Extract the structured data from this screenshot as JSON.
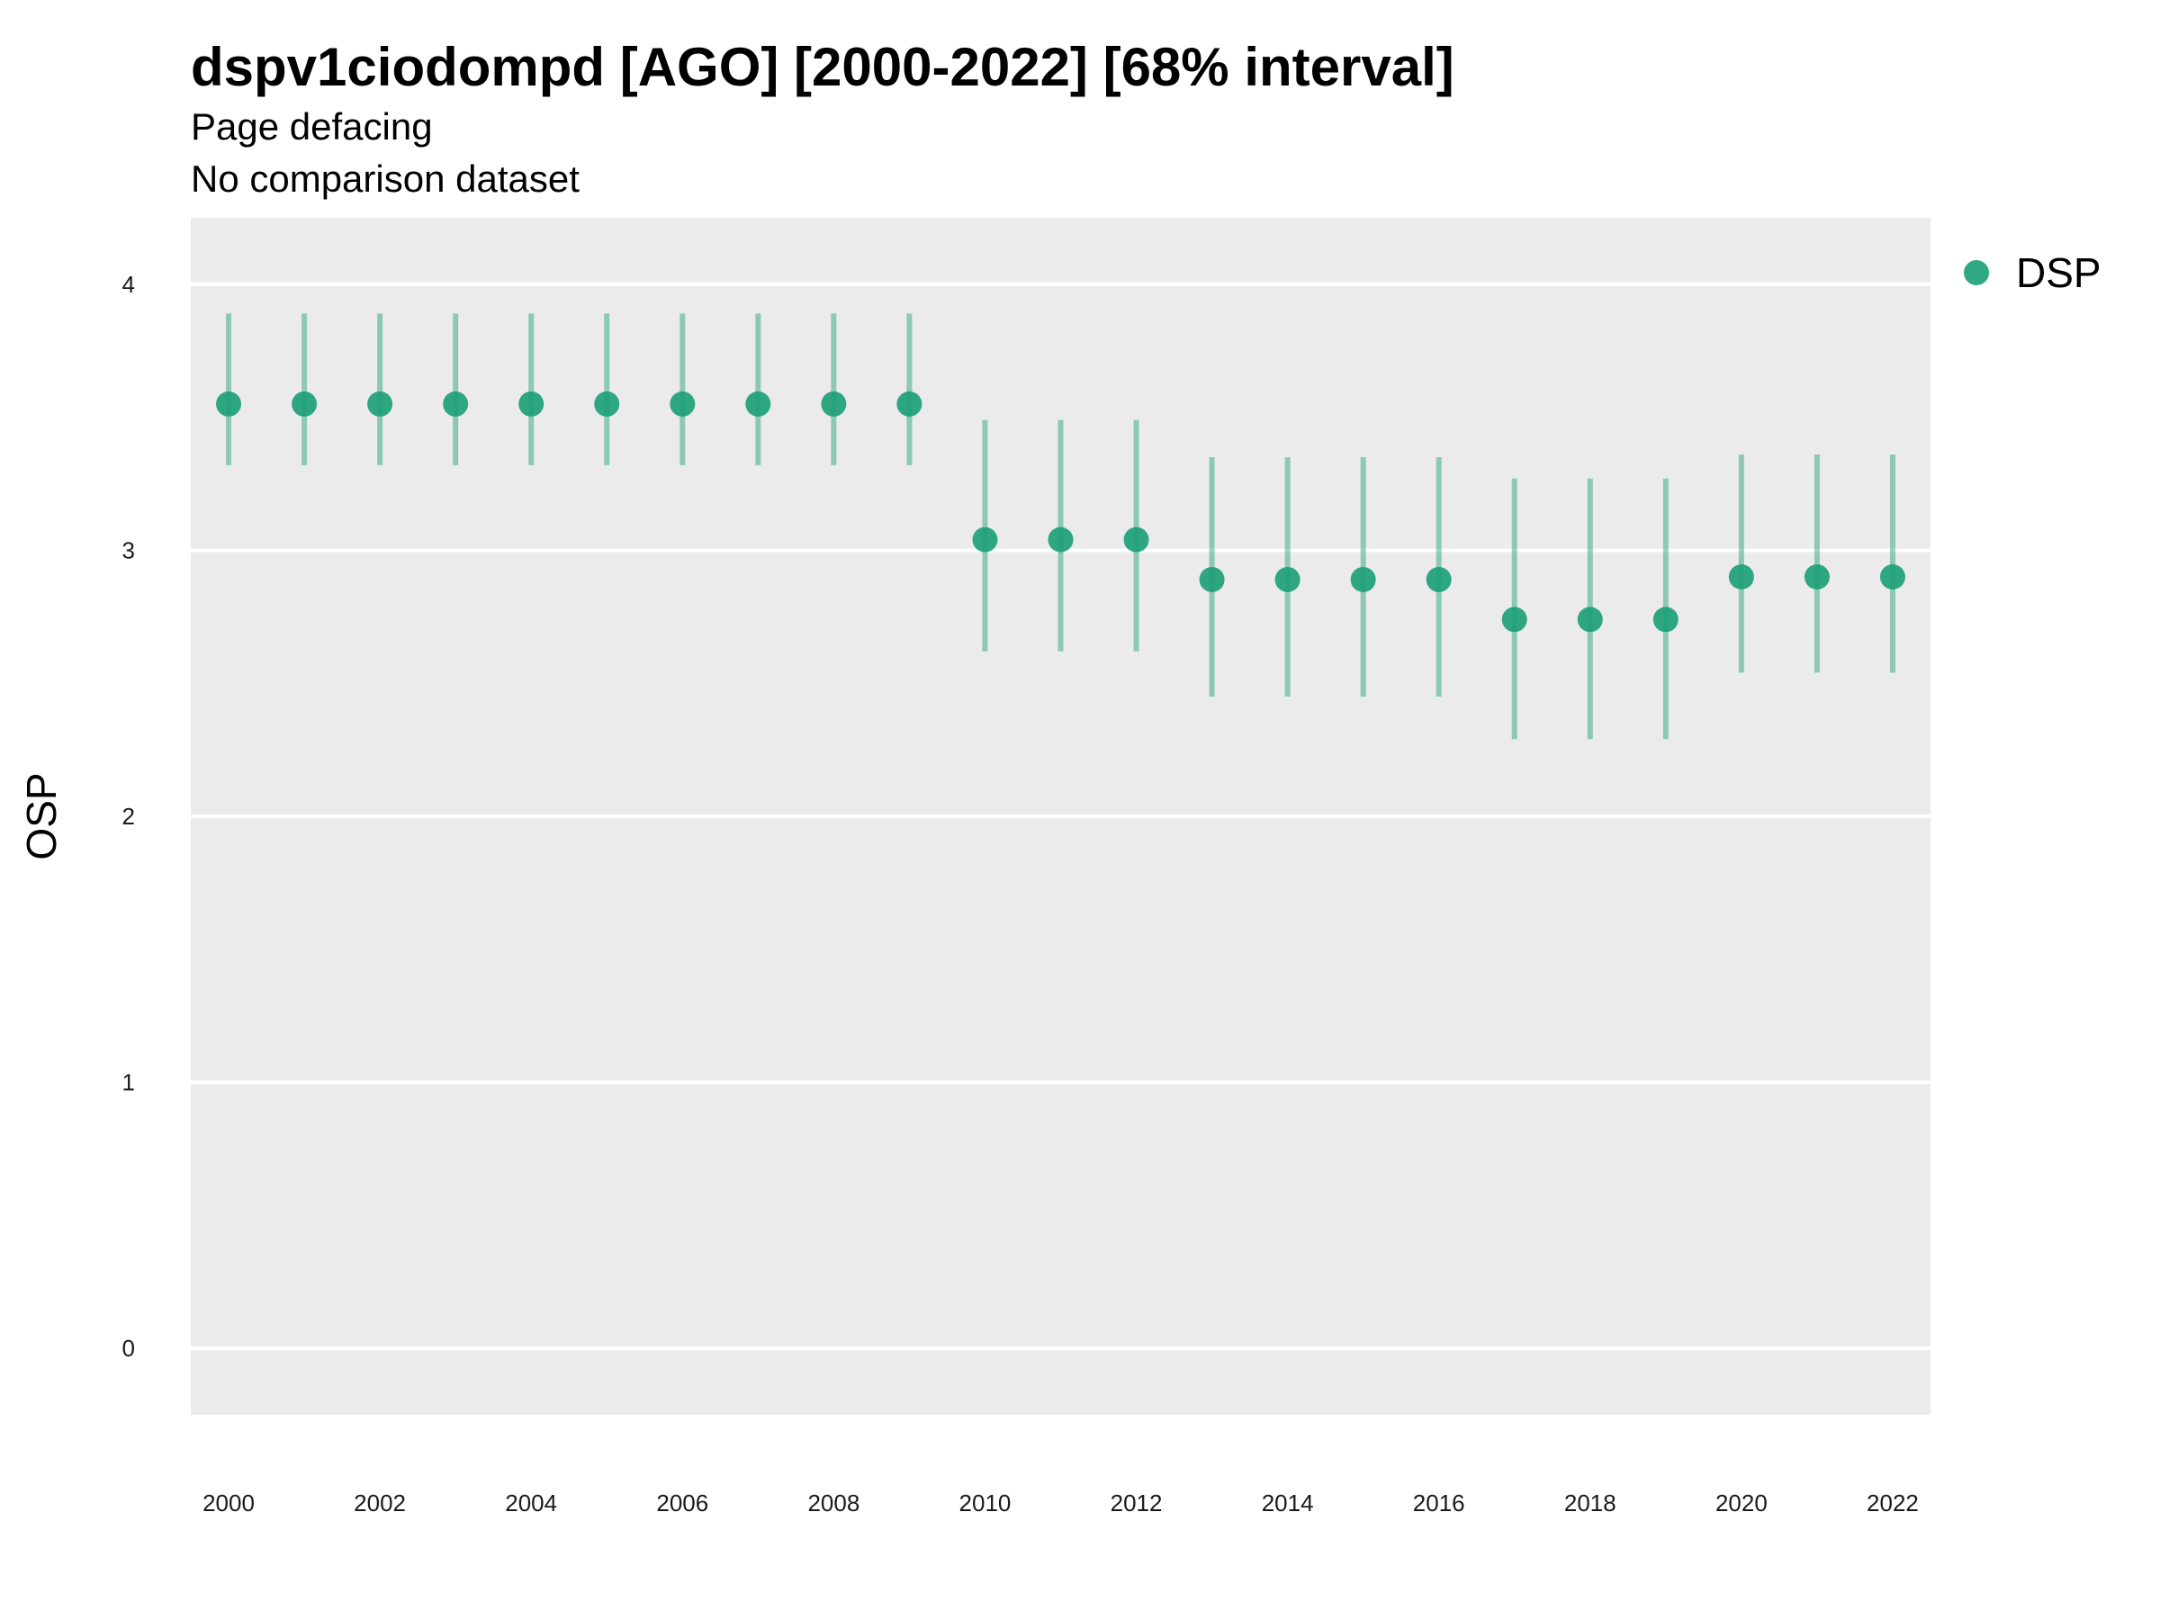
{
  "chart_data": {
    "type": "scatter",
    "title": "dspv1ciodompd [AGO] [2000-2022] [68% interval]",
    "subtitle": "Page defacing",
    "subtitle2": "No comparison dataset",
    "xlabel": "",
    "ylabel": "OSP",
    "xlim": [
      1999.5,
      2022.5
    ],
    "ylim": [
      -0.25,
      4.25
    ],
    "xticks": [
      2000,
      2002,
      2004,
      2006,
      2008,
      2010,
      2012,
      2014,
      2016,
      2018,
      2020,
      2022
    ],
    "yticks": [
      0,
      1,
      2,
      3,
      4
    ],
    "grid": true,
    "legend_position": "right",
    "colors": {
      "point": "#1b9e77",
      "panel": "#ebebeb",
      "grid": "#ffffff"
    },
    "series": [
      {
        "name": "DSP",
        "x": [
          2000,
          2001,
          2002,
          2003,
          2004,
          2005,
          2006,
          2007,
          2008,
          2009,
          2010,
          2011,
          2012,
          2013,
          2014,
          2015,
          2016,
          2017,
          2018,
          2019,
          2020,
          2021,
          2022
        ],
        "y": [
          3.55,
          3.55,
          3.55,
          3.55,
          3.55,
          3.55,
          3.55,
          3.55,
          3.55,
          3.55,
          3.04,
          3.04,
          3.04,
          2.89,
          2.89,
          2.89,
          2.89,
          2.74,
          2.74,
          2.74,
          2.9,
          2.9,
          2.9
        ],
        "lower": [
          3.32,
          3.32,
          3.32,
          3.32,
          3.32,
          3.32,
          3.32,
          3.32,
          3.32,
          3.32,
          2.62,
          2.62,
          2.62,
          2.45,
          2.45,
          2.45,
          2.45,
          2.29,
          2.29,
          2.29,
          2.54,
          2.54,
          2.54
        ],
        "upper": [
          3.89,
          3.89,
          3.89,
          3.89,
          3.89,
          3.89,
          3.89,
          3.89,
          3.89,
          3.89,
          3.49,
          3.49,
          3.49,
          3.35,
          3.35,
          3.35,
          3.35,
          3.27,
          3.27,
          3.27,
          3.36,
          3.36,
          3.36
        ]
      }
    ]
  }
}
